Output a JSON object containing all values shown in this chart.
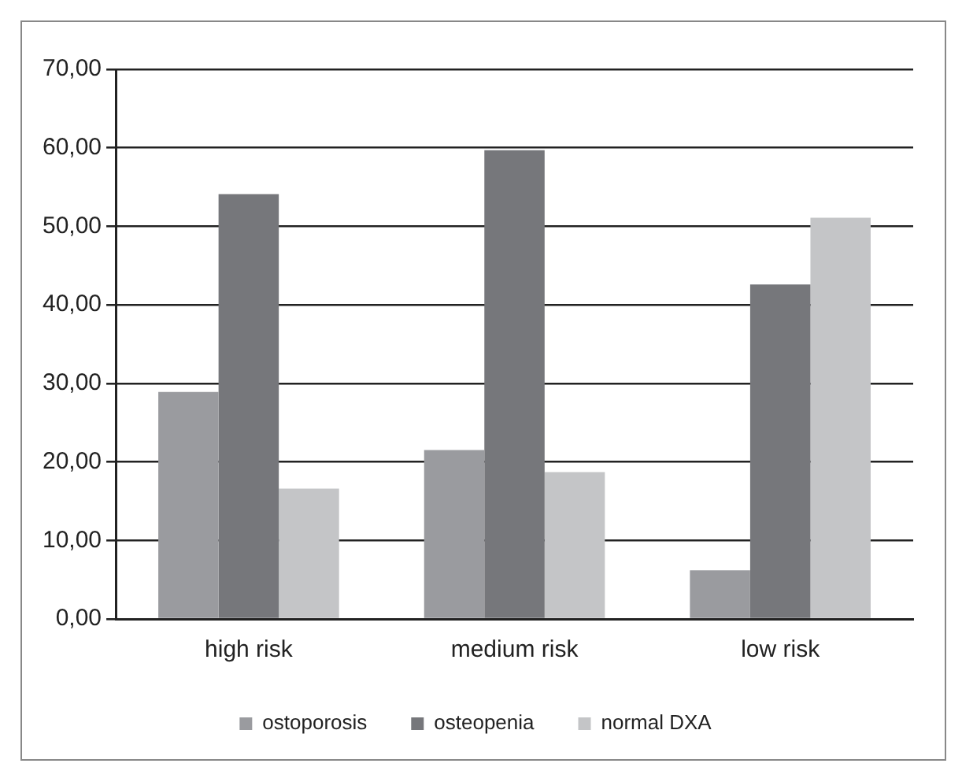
{
  "chart_data": {
    "type": "bar",
    "categories": [
      "high risk",
      "medium risk",
      "low risk"
    ],
    "series": [
      {
        "name": "ostoporosis",
        "color": "#9a9b9f",
        "values": [
          28.9,
          21.5,
          6.2
        ]
      },
      {
        "name": "osteopenia",
        "color": "#76777b",
        "values": [
          54.1,
          59.7,
          42.6
        ]
      },
      {
        "name": "normal DXA",
        "color": "#c4c5c7",
        "values": [
          16.6,
          18.7,
          51.1
        ]
      }
    ],
    "ylim": [
      0,
      70
    ],
    "yticks": [
      {
        "value": 0,
        "label": "0,00"
      },
      {
        "value": 10,
        "label": "10,00"
      },
      {
        "value": 20,
        "label": "20,00"
      },
      {
        "value": 30,
        "label": "30,00"
      },
      {
        "value": 40,
        "label": "40,00"
      },
      {
        "value": 50,
        "label": "50,00"
      },
      {
        "value": 60,
        "label": "60,00"
      },
      {
        "value": 70,
        "label": "70,00"
      }
    ],
    "grid": "y",
    "legend": "bottom"
  }
}
